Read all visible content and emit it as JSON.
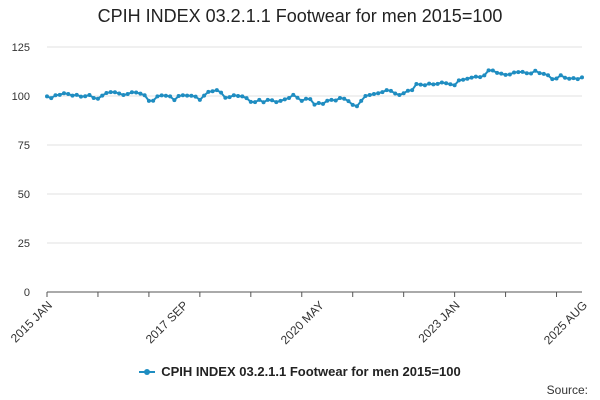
{
  "chart_data": {
    "type": "line",
    "title": "CPIH INDEX 03.2.1.1 Footwear for men 2015=100",
    "xlabel": "",
    "ylabel": "",
    "ylim": [
      0,
      125
    ],
    "y_ticks": [
      "0",
      "25",
      "50",
      "75",
      "100",
      "125"
    ],
    "x_tick_labels": [
      "2015 JAN",
      "2017 SEP",
      "2020 MAY",
      "2023 JAN",
      "2025 AUG"
    ],
    "grid": "horizontal",
    "legend_position": "bottom",
    "color": "#1f8dc1",
    "series": [
      {
        "name": "CPIH INDEX 03.2.1.1 Footwear for men 2015=100",
        "start": "2015 JAN",
        "values": [
          99.8,
          98.9,
          100.4,
          100.6,
          101.4,
          101.0,
          100.2,
          100.6,
          99.7,
          99.9,
          100.5,
          99.0,
          98.6,
          100.2,
          101.5,
          102.0,
          101.9,
          101.3,
          100.5,
          101.0,
          101.9,
          101.8,
          101.2,
          100.4,
          97.5,
          97.6,
          99.8,
          100.3,
          100.1,
          99.8,
          97.9,
          100.0,
          100.4,
          100.2,
          100.1,
          99.7,
          98.0,
          100.2,
          102.1,
          102.4,
          103.0,
          101.7,
          99.1,
          99.4,
          100.4,
          100.0,
          99.8,
          98.9,
          97.0,
          96.9,
          98.0,
          96.8,
          98.0,
          97.8,
          96.9,
          97.5,
          98.3,
          99.0,
          100.6,
          99.1,
          97.5,
          98.6,
          98.4,
          95.6,
          96.4,
          96.0,
          97.6,
          98.0,
          97.7,
          99.0,
          98.6,
          97.4,
          95.5,
          94.8,
          97.5,
          100.0,
          100.5,
          101.0,
          101.4,
          102.0,
          103.0,
          102.6,
          101.3,
          100.5,
          101.4,
          102.7,
          103.0,
          106.1,
          105.8,
          105.5,
          106.3,
          105.9,
          106.2,
          106.9,
          106.5,
          106.0,
          105.5,
          108.0,
          108.3,
          108.8,
          109.4,
          109.9,
          109.6,
          110.5,
          113.1,
          113.0,
          111.8,
          111.4,
          110.8,
          111.0,
          112.0,
          112.2,
          112.3,
          111.6,
          111.5,
          112.9,
          111.7,
          111.3,
          110.6,
          108.6,
          108.9,
          110.6,
          109.3,
          108.8,
          109.1,
          108.6,
          109.5
        ]
      }
    ]
  },
  "source_label": "Source:"
}
